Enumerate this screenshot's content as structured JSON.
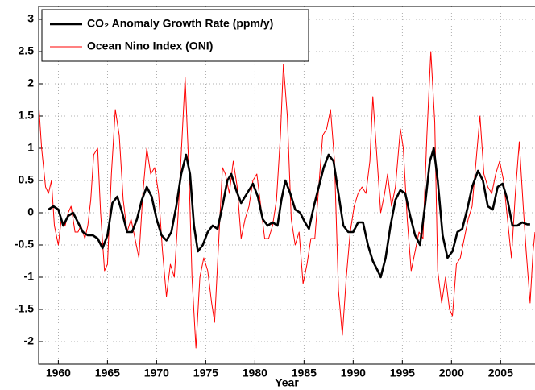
{
  "chart_data": {
    "type": "line",
    "x_label": "Year",
    "xlim": [
      1958,
      2008.5
    ],
    "xticks": [
      1960,
      1965,
      1970,
      1975,
      1980,
      1985,
      1990,
      1995,
      2000,
      2005
    ],
    "ylim": [
      -2.35,
      3.2
    ],
    "yticks": [
      -2,
      -1.5,
      -1,
      -0.5,
      0,
      0.5,
      1,
      1.5,
      2,
      2.5,
      3
    ],
    "grid": true,
    "legend": "upper left",
    "series": [
      {
        "name": "CO₂ Anomaly Growth Rate (ppm/y)",
        "color": "#000000",
        "x": [
          1959.0,
          1959.5,
          1960.0,
          1960.5,
          1961.0,
          1961.5,
          1962.0,
          1962.5,
          1963.0,
          1963.5,
          1964.0,
          1964.5,
          1965.0,
          1965.5,
          1966.0,
          1966.5,
          1967.0,
          1967.5,
          1968.0,
          1968.5,
          1969.0,
          1969.5,
          1970.0,
          1970.5,
          1971.0,
          1971.5,
          1972.0,
          1972.5,
          1973.0,
          1973.4,
          1973.8,
          1974.2,
          1974.7,
          1975.2,
          1975.7,
          1976.2,
          1976.7,
          1977.2,
          1977.6,
          1978.1,
          1978.6,
          1979.2,
          1979.8,
          1980.3,
          1980.8,
          1981.3,
          1981.8,
          1982.3,
          1982.7,
          1983.1,
          1983.6,
          1984.1,
          1984.6,
          1985.1,
          1985.5,
          1986.0,
          1986.5,
          1987.0,
          1987.5,
          1988.0,
          1988.5,
          1989.0,
          1989.5,
          1990.0,
          1990.5,
          1991.0,
          1991.5,
          1992.0,
          1992.5,
          1992.8,
          1993.3,
          1993.8,
          1994.3,
          1994.8,
          1995.3,
          1995.8,
          1996.3,
          1996.8,
          1997.3,
          1997.8,
          1998.2,
          1998.6,
          1999.1,
          1999.6,
          2000.1,
          2000.6,
          2001.1,
          2001.6,
          2002.1,
          2002.7,
          2003.2,
          2003.7,
          2004.2,
          2004.7,
          2005.2,
          2005.7,
          2006.2,
          2006.7,
          2007.2,
          2007.7,
          2008.0
        ],
        "values": [
          0.05,
          0.1,
          0.05,
          -0.2,
          -0.05,
          0.0,
          -0.15,
          -0.3,
          -0.35,
          -0.35,
          -0.4,
          -0.55,
          -0.35,
          0.15,
          0.25,
          0.0,
          -0.3,
          -0.3,
          -0.1,
          0.2,
          0.4,
          0.25,
          -0.1,
          -0.35,
          -0.43,
          -0.3,
          0.1,
          0.6,
          0.9,
          0.6,
          -0.2,
          -0.6,
          -0.5,
          -0.3,
          -0.2,
          -0.25,
          0.1,
          0.5,
          0.6,
          0.35,
          0.15,
          0.3,
          0.45,
          0.25,
          -0.1,
          -0.2,
          -0.15,
          -0.2,
          0.2,
          0.5,
          0.3,
          0.05,
          0.0,
          -0.15,
          -0.25,
          0.1,
          0.4,
          0.7,
          0.9,
          0.8,
          0.3,
          -0.2,
          -0.3,
          -0.3,
          -0.15,
          -0.15,
          -0.5,
          -0.75,
          -0.9,
          -1.0,
          -0.7,
          -0.2,
          0.2,
          0.35,
          0.3,
          -0.05,
          -0.35,
          -0.5,
          0.1,
          0.8,
          1.0,
          0.5,
          -0.35,
          -0.7,
          -0.6,
          -0.3,
          -0.25,
          0.05,
          0.4,
          0.65,
          0.5,
          0.1,
          0.05,
          0.4,
          0.45,
          0.2,
          -0.2,
          -0.2,
          -0.15,
          -0.18,
          -0.18
        ]
      },
      {
        "name": "Ocean Nino Index (ONI)",
        "color": "#ff0000",
        "x": [
          1958.0,
          1958.3,
          1958.7,
          1959.0,
          1959.3,
          1959.6,
          1960.0,
          1960.3,
          1960.7,
          1961.0,
          1961.3,
          1961.7,
          1962.0,
          1962.3,
          1962.7,
          1963.0,
          1963.3,
          1963.6,
          1964.0,
          1964.3,
          1964.7,
          1965.0,
          1965.4,
          1965.8,
          1966.2,
          1966.6,
          1967.0,
          1967.4,
          1967.8,
          1968.2,
          1968.6,
          1969.0,
          1969.4,
          1969.8,
          1970.2,
          1970.6,
          1971.0,
          1971.4,
          1971.8,
          1972.2,
          1972.6,
          1972.9,
          1973.3,
          1973.6,
          1974.0,
          1974.4,
          1974.8,
          1975.2,
          1975.6,
          1975.9,
          1976.3,
          1976.7,
          1977.0,
          1977.4,
          1977.8,
          1978.2,
          1978.6,
          1979.0,
          1979.4,
          1979.8,
          1980.2,
          1980.6,
          1981.0,
          1981.4,
          1981.8,
          1982.2,
          1982.6,
          1982.9,
          1983.3,
          1983.7,
          1984.1,
          1984.5,
          1984.9,
          1985.3,
          1985.7,
          1986.1,
          1986.5,
          1986.9,
          1987.3,
          1987.7,
          1988.1,
          1988.5,
          1988.9,
          1989.3,
          1989.7,
          1990.1,
          1990.5,
          1990.9,
          1991.3,
          1991.7,
          1992.0,
          1992.4,
          1992.8,
          1993.2,
          1993.5,
          1993.9,
          1994.3,
          1994.8,
          1995.1,
          1995.5,
          1995.9,
          1996.3,
          1996.7,
          1997.1,
          1997.5,
          1997.9,
          1998.3,
          1998.6,
          1999.0,
          1999.4,
          1999.8,
          2000.1,
          2000.5,
          2000.9,
          2001.3,
          2001.7,
          2002.1,
          2002.5,
          2002.9,
          2003.3,
          2003.7,
          2004.1,
          2004.5,
          2004.9,
          2005.3,
          2005.7,
          2006.1,
          2006.5,
          2006.9,
          2007.3,
          2007.6,
          2008.0,
          2008.3,
          2008.5
        ],
        "values": [
          1.7,
          1.0,
          0.4,
          0.3,
          0.5,
          -0.2,
          -0.5,
          -0.1,
          -0.2,
          0.0,
          0.1,
          -0.3,
          -0.3,
          -0.2,
          -0.4,
          -0.2,
          0.2,
          0.9,
          1.0,
          0.0,
          -0.9,
          -0.8,
          0.6,
          1.6,
          1.2,
          0.2,
          -0.3,
          -0.1,
          -0.4,
          -0.7,
          0.3,
          1.0,
          0.6,
          0.7,
          0.3,
          -0.6,
          -1.3,
          -0.8,
          -1.0,
          0.0,
          1.2,
          2.1,
          0.6,
          -1.0,
          -2.1,
          -1.0,
          -0.7,
          -0.9,
          -1.4,
          -1.7,
          -0.5,
          0.7,
          0.6,
          0.3,
          0.8,
          0.4,
          -0.4,
          -0.1,
          0.1,
          0.5,
          0.6,
          0.1,
          -0.4,
          -0.4,
          -0.2,
          0.2,
          1.2,
          2.3,
          1.5,
          -0.1,
          -0.5,
          -0.3,
          -1.1,
          -0.8,
          -0.4,
          -0.4,
          0.4,
          1.2,
          1.3,
          1.6,
          0.8,
          -1.2,
          -1.9,
          -1.0,
          -0.3,
          0.1,
          0.3,
          0.4,
          0.3,
          0.8,
          1.8,
          0.9,
          0.0,
          0.3,
          0.6,
          0.1,
          0.4,
          1.3,
          1.0,
          -0.1,
          -0.9,
          -0.6,
          -0.3,
          -0.4,
          1.2,
          2.5,
          1.4,
          -0.9,
          -1.4,
          -1.0,
          -1.5,
          -1.6,
          -0.8,
          -0.7,
          -0.4,
          -0.1,
          0.1,
          0.8,
          1.5,
          0.6,
          0.4,
          0.3,
          0.6,
          0.8,
          0.5,
          -0.1,
          -0.7,
          0.3,
          1.1,
          0.1,
          -0.6,
          -1.4,
          -0.6,
          -0.3
        ]
      }
    ]
  }
}
